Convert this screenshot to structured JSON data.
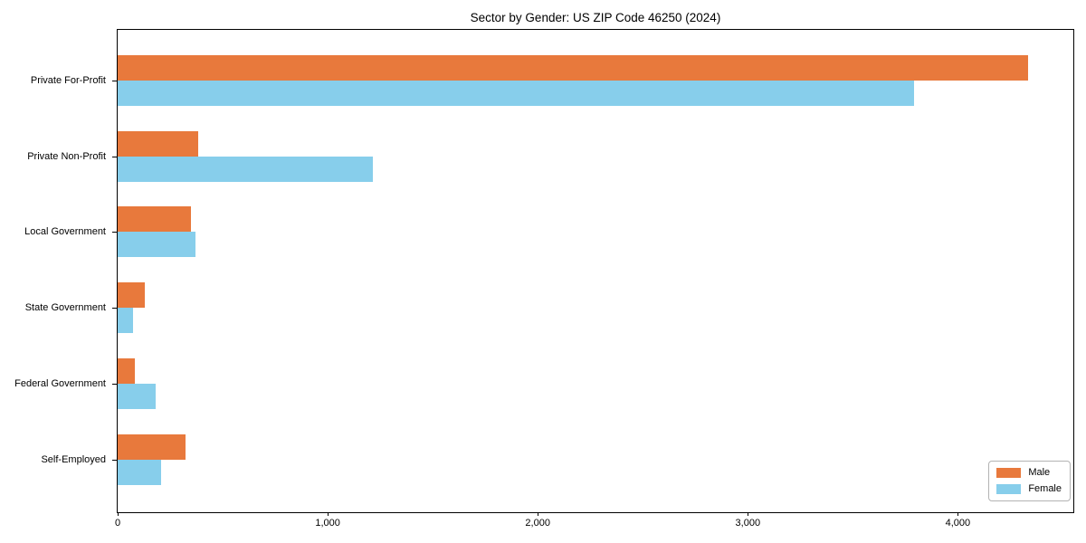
{
  "chart_data": {
    "type": "bar",
    "orientation": "horizontal",
    "title": "Sector by Gender: US ZIP Code 46250 (2024)",
    "categories": [
      "Private For-Profit",
      "Private Non-Profit",
      "Local Government",
      "State Government",
      "Federal Government",
      "Self-Employed"
    ],
    "series": [
      {
        "name": "Male",
        "color": "#E8793C",
        "values": [
          4335,
          385,
          350,
          130,
          80,
          325
        ]
      },
      {
        "name": "Female",
        "color": "#87CEEB",
        "values": [
          3790,
          1215,
          370,
          75,
          180,
          205
        ]
      }
    ],
    "xlabel": "",
    "ylabel": "",
    "xlim": [
      0,
      4550
    ],
    "x_ticks": [
      {
        "value": 0,
        "label": "0"
      },
      {
        "value": 1000,
        "label": "1,000"
      },
      {
        "value": 2000,
        "label": "2,000"
      },
      {
        "value": 3000,
        "label": "3,000"
      },
      {
        "value": 4000,
        "label": "4,000"
      }
    ],
    "grid": false,
    "legend_position": "lower right",
    "frame_color": "#000000"
  }
}
